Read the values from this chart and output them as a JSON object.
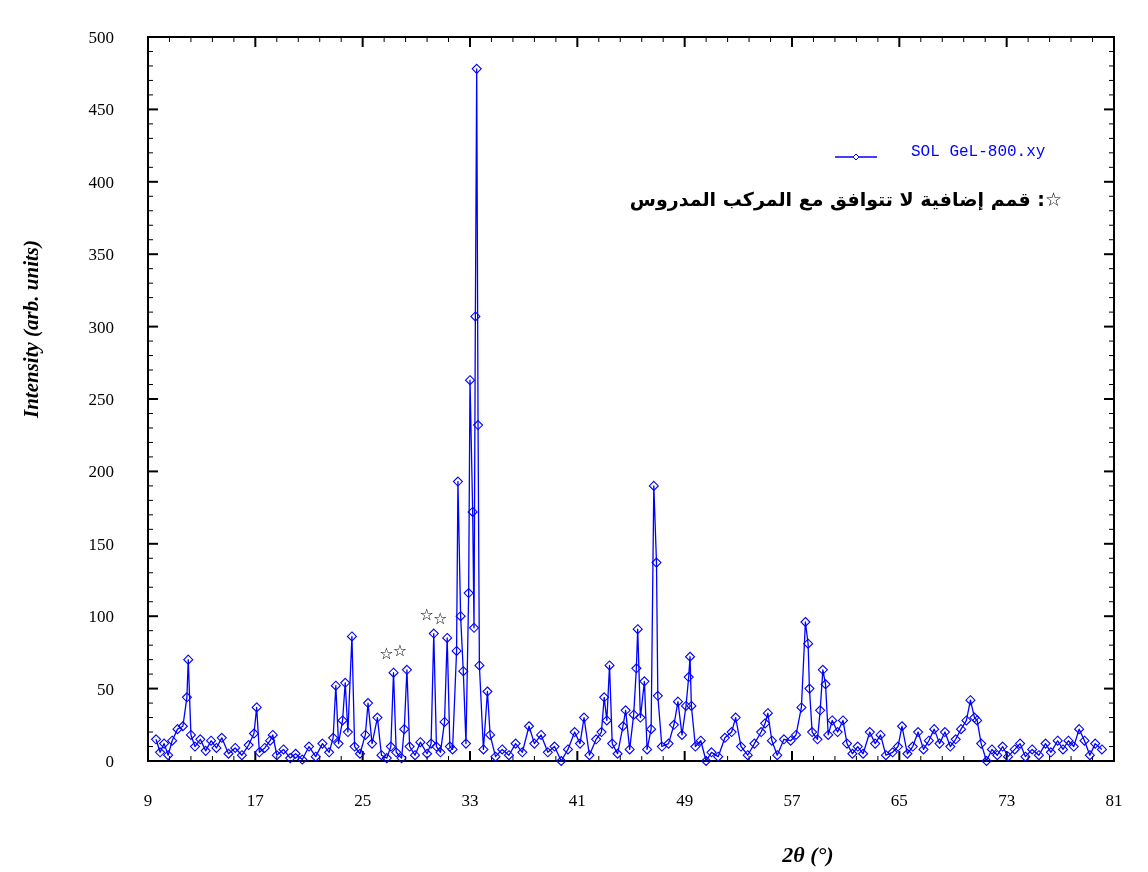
{
  "chart_data": {
    "type": "line",
    "xlabel": "2θ (°)",
    "ylabel": "Intensity (arb. units)",
    "xlim": [
      9,
      81
    ],
    "xticks": [
      9,
      17,
      25,
      33,
      41,
      49,
      57,
      65,
      73,
      81
    ],
    "ylim": [
      0,
      500
    ],
    "yticks": [
      0,
      50,
      100,
      150,
      200,
      250,
      300,
      350,
      400,
      450,
      500
    ],
    "legend": "top right",
    "marker": "diamond",
    "line_style": "solid",
    "x": [
      9.6,
      9.9,
      10.2,
      10.5,
      10.8,
      11.2,
      11.6,
      11.9,
      12.0,
      12.2,
      12.5,
      12.9,
      13.3,
      13.7,
      14.1,
      14.5,
      15.0,
      15.5,
      16.0,
      16.5,
      16.9,
      17.1,
      17.3,
      17.7,
      18.1,
      18.3,
      18.6,
      19.1,
      19.6,
      20.0,
      20.5,
      21.0,
      21.5,
      22.0,
      22.5,
      22.8,
      23.0,
      23.2,
      23.5,
      23.7,
      23.9,
      24.2,
      24.4,
      24.8,
      25.2,
      25.4,
      25.7,
      26.1,
      26.4,
      26.8,
      27.1,
      27.3,
      27.5,
      27.9,
      28.1,
      28.3,
      28.5,
      28.9,
      29.3,
      29.8,
      30.1,
      30.3,
      30.5,
      30.8,
      31.1,
      31.3,
      31.5,
      31.7,
      32.0,
      32.1,
      32.3,
      32.5,
      32.7,
      32.9,
      33.0,
      33.2,
      33.3,
      33.4,
      33.5,
      33.6,
      33.7,
      34.0,
      34.3,
      34.5,
      34.9,
      35.4,
      35.9,
      36.4,
      36.9,
      37.4,
      37.8,
      38.3,
      38.8,
      39.3,
      39.8,
      40.3,
      40.8,
      41.2,
      41.5,
      41.9,
      42.4,
      42.8,
      43.0,
      43.2,
      43.4,
      43.6,
      44.0,
      44.4,
      44.6,
      44.9,
      45.2,
      45.4,
      45.5,
      45.7,
      46.0,
      46.2,
      46.5,
      46.7,
      46.9,
      47.0,
      47.3,
      47.8,
      48.2,
      48.5,
      48.8,
      49.1,
      49.3,
      49.4,
      49.5,
      49.8,
      50.2,
      50.6,
      51.0,
      51.5,
      52.0,
      52.5,
      52.8,
      53.2,
      53.7,
      54.2,
      54.7,
      55.0,
      55.2,
      55.5,
      55.9,
      56.4,
      56.9,
      57.3,
      57.7,
      58.0,
      58.2,
      58.3,
      58.5,
      58.9,
      59.1,
      59.3,
      59.5,
      59.7,
      60.0,
      60.4,
      60.8,
      61.1,
      61.5,
      61.9,
      62.3,
      62.8,
      63.2,
      63.6,
      64.0,
      64.5,
      64.9,
      65.2,
      65.6,
      66.0,
      66.4,
      66.8,
      67.2,
      67.6,
      68.0,
      68.4,
      68.8,
      69.2,
      69.6,
      70.0,
      70.3,
      70.6,
      70.8,
      71.1,
      71.5,
      71.9,
      72.3,
      72.7,
      73.1,
      73.6,
      74.0,
      74.4,
      74.9,
      75.4,
      75.9,
      76.3,
      76.8,
      77.2,
      77.6,
      78.0,
      78.4,
      78.8,
      79.2,
      79.6,
      80.1
    ],
    "series": [
      {
        "name": "SOL GeL-800.xy",
        "color": "#0000ff",
        "values": [
          15,
          6,
          12,
          4,
          14,
          22,
          24,
          44,
          70,
          18,
          10,
          15,
          7,
          14,
          9,
          16,
          5,
          9,
          4,
          11,
          19,
          37,
          6,
          9,
          14,
          18,
          4,
          8,
          2,
          5,
          1,
          10,
          3,
          12,
          6,
          16,
          52,
          12,
          28,
          54,
          20,
          86,
          10,
          5,
          18,
          40,
          12,
          30,
          4,
          2,
          10,
          61,
          6,
          2,
          22,
          63,
          10,
          4,
          13,
          5,
          12,
          88,
          10,
          6,
          27,
          85,
          10,
          8,
          76,
          193,
          100,
          62,
          12,
          116,
          263,
          172,
          92,
          307,
          478,
          232,
          66,
          8,
          48,
          18,
          3,
          8,
          4,
          12,
          6,
          24,
          12,
          18,
          6,
          10,
          0,
          8,
          20,
          12,
          30,
          4,
          15,
          20,
          44,
          28,
          66,
          12,
          5,
          24,
          35,
          8,
          32,
          64,
          91,
          30,
          55,
          8,
          22,
          190,
          137,
          45,
          10,
          12,
          25,
          41,
          18,
          38,
          58,
          72,
          38,
          10,
          14,
          0,
          6,
          3,
          16,
          20,
          30,
          10,
          4,
          12,
          20,
          26,
          33,
          14,
          4,
          15,
          14,
          18,
          37,
          96,
          81,
          50,
          20,
          15,
          35,
          63,
          53,
          18,
          28,
          20,
          28,
          12,
          5,
          10,
          5,
          20,
          12,
          18,
          4,
          6,
          10,
          24,
          5,
          10,
          20,
          8,
          14,
          22,
          12,
          20,
          10,
          15,
          22,
          28,
          42,
          30,
          28,
          12,
          0,
          8,
          4,
          10,
          3,
          8,
          12,
          3,
          8,
          4,
          12,
          6,
          14,
          8,
          14,
          10,
          22,
          14,
          4,
          12,
          8
        ]
      }
    ],
    "annotations": [
      {
        "text": "☆",
        "x": 27.3,
        "y": 61
      },
      {
        "text": "☆",
        "x": 28.3,
        "y": 63
      },
      {
        "text": "☆",
        "x": 30.3,
        "y": 88
      },
      {
        "text": "☆",
        "x": 31.3,
        "y": 85
      },
      "☆: قمم إضافية لا تتوافق مع المركب المدروس"
    ]
  }
}
